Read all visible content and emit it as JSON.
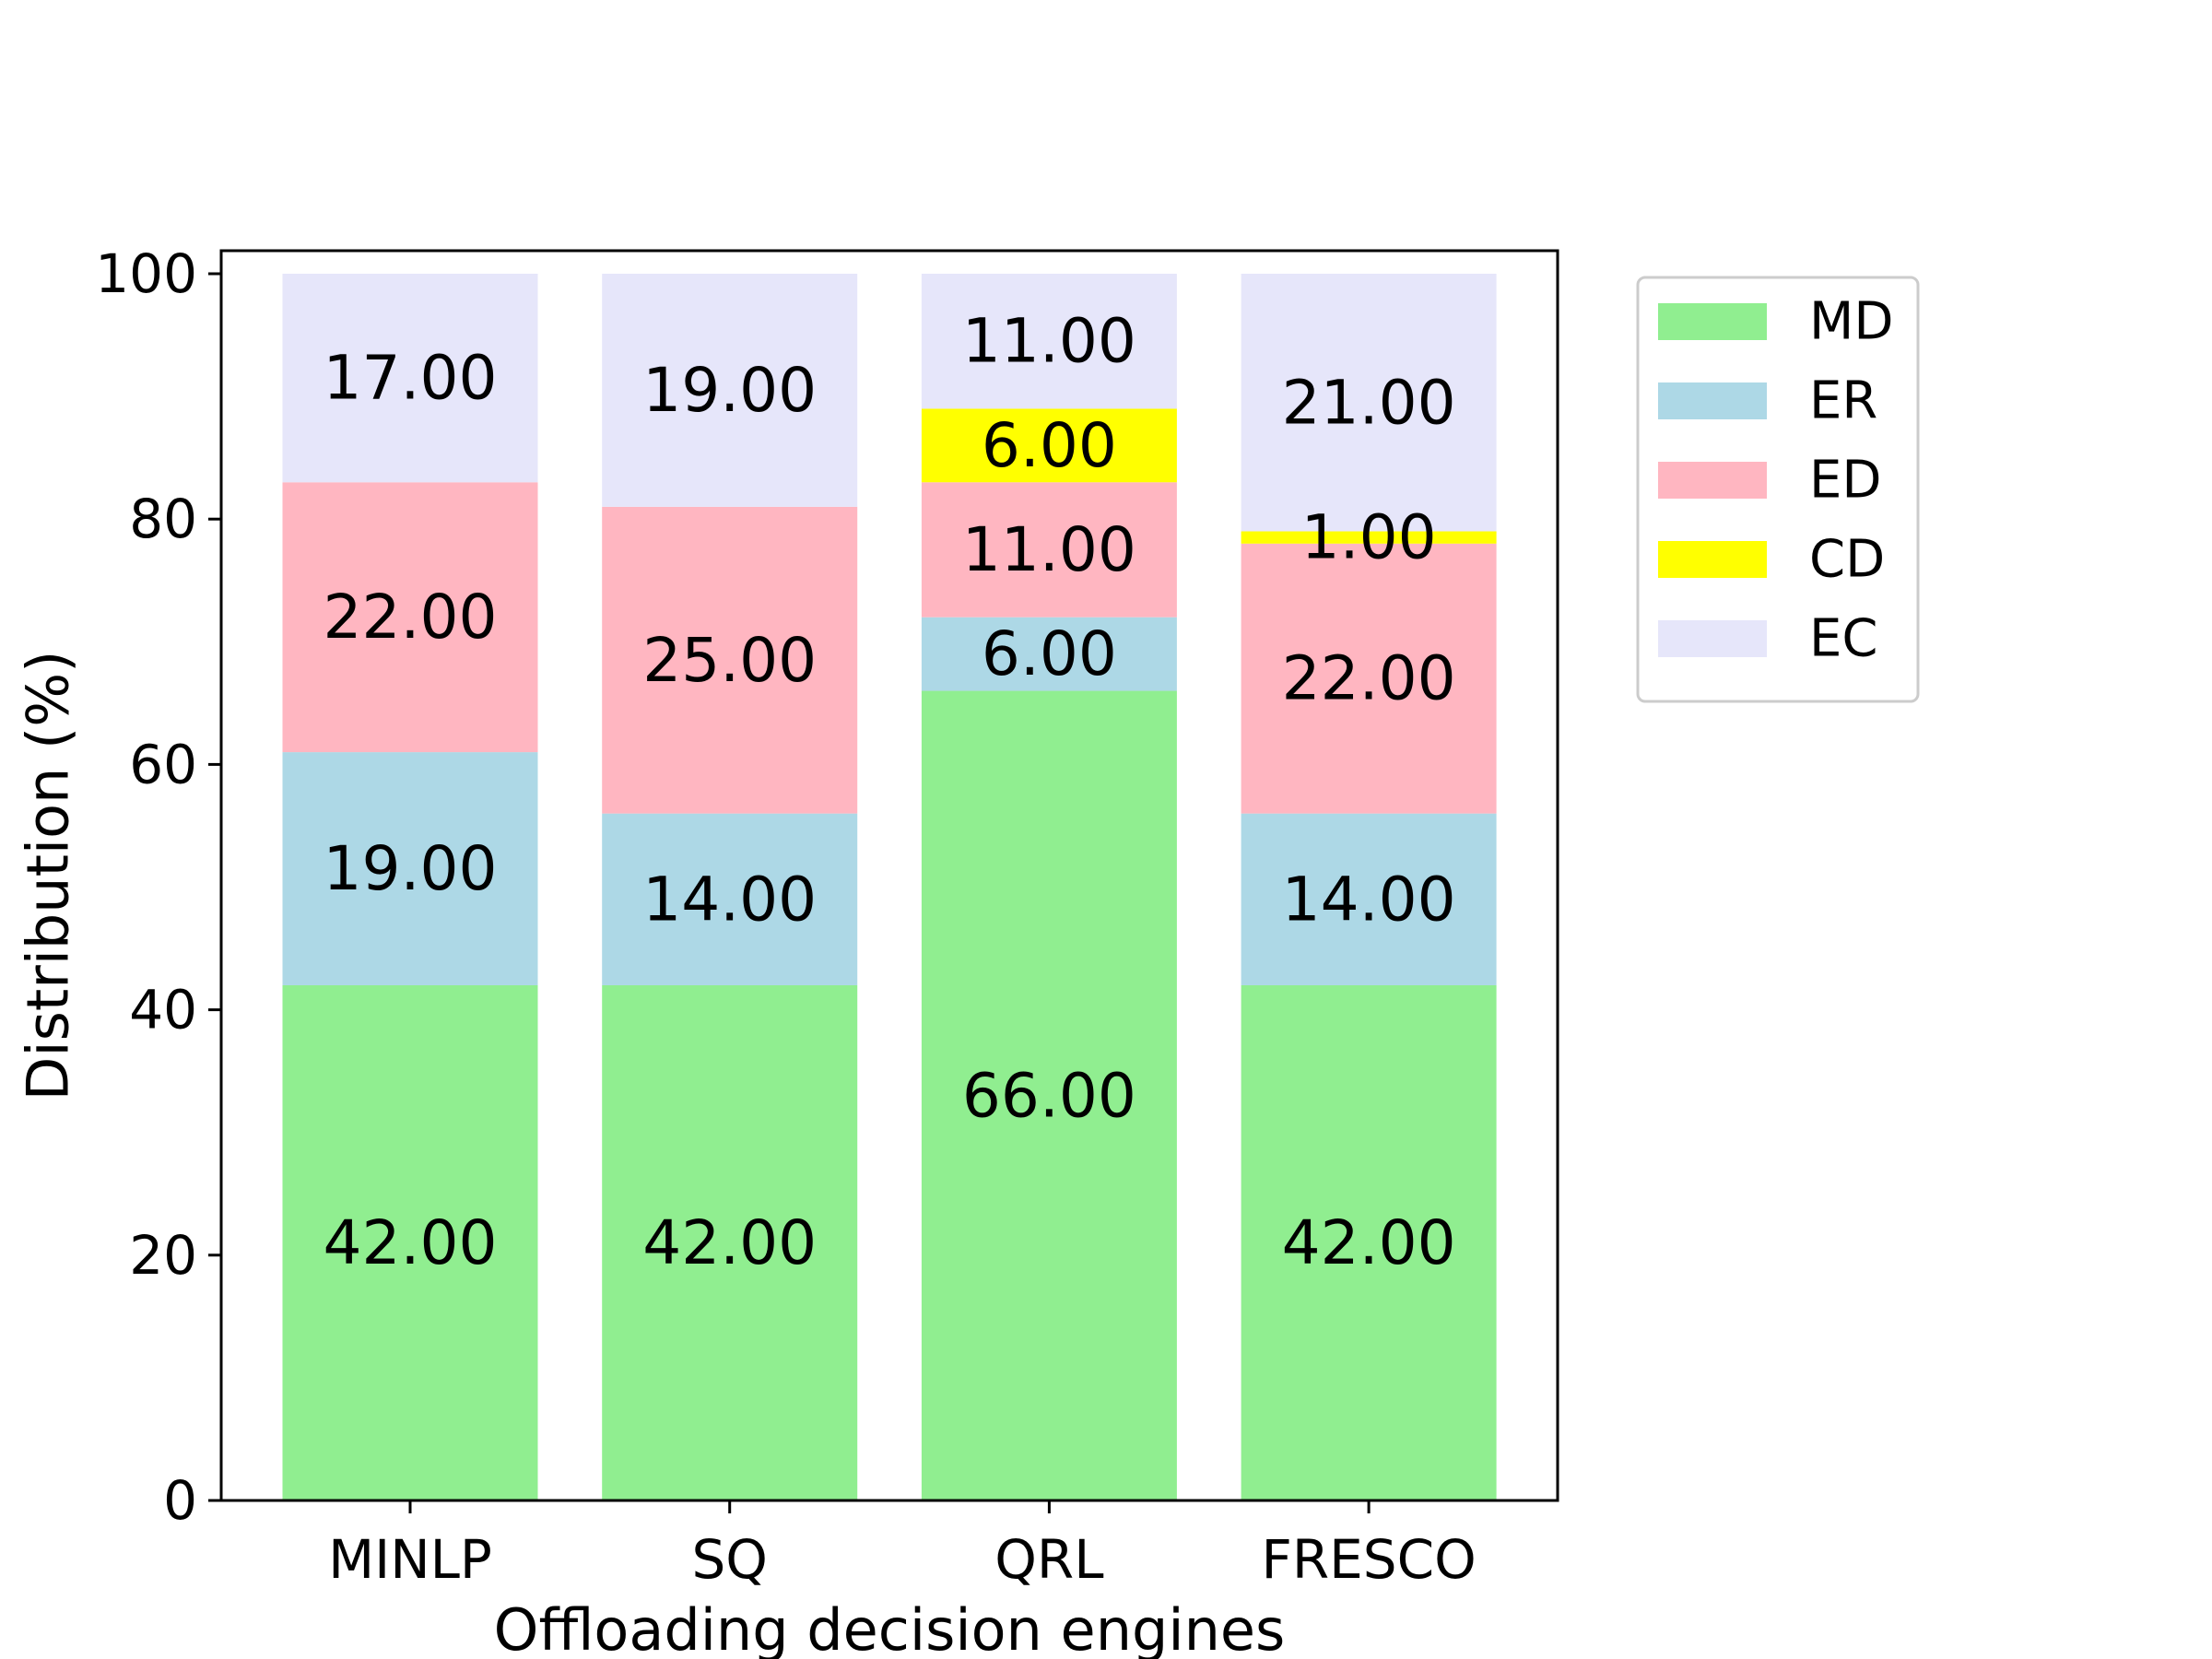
{
  "chart_data": {
    "type": "bar",
    "stacked": true,
    "title": "",
    "xlabel": "Offloading decision engines",
    "ylabel": "Distribution (%)",
    "ylim": [
      0,
      100
    ],
    "yticks": [
      0,
      20,
      40,
      60,
      80,
      100
    ],
    "grid": false,
    "legend_position": "right, outside plot (upper)",
    "categories": [
      "MINLP",
      "SQ",
      "QRL",
      "FRESCO"
    ],
    "series": [
      {
        "name": "MD",
        "color": "#90ee90",
        "values": [
          42,
          42,
          66,
          42
        ],
        "labels": [
          "42.00",
          "42.00",
          "66.00",
          "42.00"
        ]
      },
      {
        "name": "ER",
        "color": "#add8e6",
        "values": [
          19,
          14,
          6,
          14
        ],
        "labels": [
          "19.00",
          "14.00",
          "6.00",
          "14.00"
        ]
      },
      {
        "name": "ED",
        "color": "#ffb6c1",
        "values": [
          22,
          25,
          11,
          22
        ],
        "labels": [
          "22.00",
          "25.00",
          "11.00",
          "22.00"
        ]
      },
      {
        "name": "CD",
        "color": "#ffff00",
        "values": [
          0,
          0,
          6,
          1
        ],
        "labels": [
          "",
          "",
          "6.00",
          "1.00"
        ]
      },
      {
        "name": "EC",
        "color": "#e6e6fa",
        "values": [
          17,
          19,
          11,
          21
        ],
        "labels": [
          "17.00",
          "19.00",
          "11.00",
          "21.00"
        ]
      }
    ]
  }
}
